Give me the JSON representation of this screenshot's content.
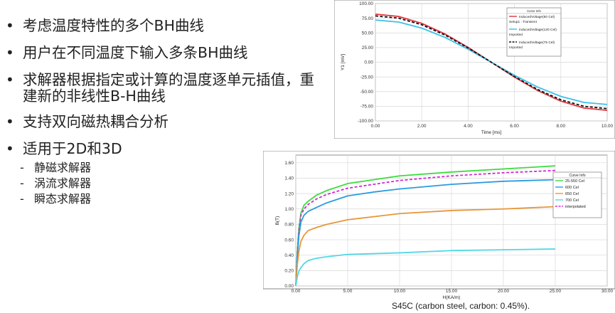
{
  "bullets": [
    "考虑温度特性的多个BH曲线",
    "用户在不同温度下输入多条BH曲线",
    "求解器根据指定或计算的温度逐单元插值，重建新的非线性B-H曲线",
    "支持双向磁热耦合分析",
    "适用于2D和3D"
  ],
  "sub_bullets": [
    "静磁求解器",
    "涡流求解器",
    "瞬态求解器"
  ],
  "chart_data": [
    {
      "type": "line",
      "xlabel": "Time [ms]",
      "ylabel": "Y1 [mV]",
      "xlim": [
        0,
        10
      ],
      "ylim": [
        -100,
        100
      ],
      "xticks": [
        "0.00",
        "2.00",
        "4.00",
        "6.00",
        "8.00",
        "10.00"
      ],
      "yticks": [
        "100.00",
        "75.00",
        "50.00",
        "25.00",
        "0.00",
        "-25.00",
        "-50.00",
        "-75.00",
        "-100.00"
      ],
      "grid": true,
      "legend": {
        "position": "top-right",
        "title": "Curve Info",
        "entries": [
          {
            "name": "InducedVoltage(50 Cel)",
            "sub": "Setup1 : Transient",
            "color": "#e0343c",
            "dash": false
          },
          {
            "name": "InducedVoltage(120 Cel)",
            "sub": "Imported",
            "color": "#3cc0e8",
            "dash": false
          },
          {
            "name": "InducedVoltage(75 Cel)",
            "sub": "Imported",
            "color": "#111111",
            "dash": true
          }
        ]
      },
      "x": [
        0,
        1,
        2,
        3,
        4,
        5,
        6,
        7,
        8,
        9,
        10
      ],
      "series": [
        {
          "name": "InducedVoltage(50 Cel)",
          "color": "#e0343c",
          "dash": false,
          "values": [
            82,
            78,
            66.3,
            48.2,
            25.3,
            0,
            -25.3,
            -48.2,
            -66.3,
            -78,
            -82
          ]
        },
        {
          "name": "InducedVoltage(120 Cel)",
          "color": "#3cc0e8",
          "dash": false,
          "values": [
            72,
            68.5,
            58.2,
            42.3,
            22.2,
            0,
            -22.2,
            -42.3,
            -58.2,
            -68.5,
            -72
          ]
        },
        {
          "name": "InducedVoltage(75 Cel)",
          "color": "#111111",
          "dash": true,
          "values": [
            79,
            75.1,
            63.9,
            46.4,
            24.4,
            0,
            -24.4,
            -46.4,
            -63.9,
            -75.1,
            -79
          ]
        }
      ]
    },
    {
      "type": "line",
      "xlabel": "H(KA/m)",
      "ylabel": "B(T)",
      "xlim": [
        0,
        30
      ],
      "ylim": [
        0,
        1.7
      ],
      "xticks": [
        "0.00",
        "5.00",
        "10.00",
        "15.00",
        "20.00",
        "25.00",
        "30.00"
      ],
      "yticks": [
        "0.00",
        "0.20",
        "0.40",
        "0.60",
        "0.80",
        "1.00",
        "1.20",
        "1.40",
        "1.60"
      ],
      "grid": true,
      "caption": "S45C (carbon steel, carbon: 0.45%).",
      "legend": {
        "position": "right",
        "title": "Curve Info",
        "entries": [
          {
            "name": "25-550 Cel",
            "color": "#3ddc3d",
            "dash": false
          },
          {
            "name": "600 Cel",
            "color": "#2b9be0",
            "dash": false
          },
          {
            "name": "650 Cel",
            "color": "#e8963a",
            "dash": false
          },
          {
            "name": "700 Cel",
            "color": "#4fd8e8",
            "dash": false
          },
          {
            "name": "interpolated",
            "color": "#d02bd0",
            "dash": true
          }
        ]
      },
      "series": [
        {
          "name": "25-550 Cel",
          "color": "#3ddc3d",
          "dash": false,
          "points": [
            [
              0,
              0
            ],
            [
              0.15,
              0.45
            ],
            [
              0.3,
              0.75
            ],
            [
              0.5,
              0.95
            ],
            [
              0.8,
              1.05
            ],
            [
              1.2,
              1.1
            ],
            [
              2,
              1.18
            ],
            [
              3,
              1.24
            ],
            [
              5,
              1.33
            ],
            [
              7.5,
              1.38
            ],
            [
              10,
              1.43
            ],
            [
              15,
              1.48
            ],
            [
              20,
              1.52
            ],
            [
              25,
              1.56
            ]
          ]
        },
        {
          "name": "interpolated",
          "color": "#d02bd0",
          "dash": true,
          "points": [
            [
              0,
              0
            ],
            [
              0.15,
              0.42
            ],
            [
              0.3,
              0.72
            ],
            [
              0.5,
              0.92
            ],
            [
              0.8,
              1.0
            ],
            [
              1.2,
              1.06
            ],
            [
              2,
              1.13
            ],
            [
              3,
              1.19
            ],
            [
              5,
              1.27
            ],
            [
              7.5,
              1.32
            ],
            [
              10,
              1.37
            ],
            [
              15,
              1.43
            ],
            [
              20,
              1.47
            ],
            [
              25,
              1.5
            ]
          ]
        },
        {
          "name": "600 Cel",
          "color": "#2b9be0",
          "dash": false,
          "points": [
            [
              0,
              0
            ],
            [
              0.15,
              0.38
            ],
            [
              0.3,
              0.65
            ],
            [
              0.5,
              0.83
            ],
            [
              0.8,
              0.92
            ],
            [
              1.2,
              0.97
            ],
            [
              2,
              1.02
            ],
            [
              3,
              1.08
            ],
            [
              5,
              1.17
            ],
            [
              7.5,
              1.22
            ],
            [
              10,
              1.26
            ],
            [
              15,
              1.32
            ],
            [
              20,
              1.36
            ],
            [
              25,
              1.38
            ]
          ]
        },
        {
          "name": "650 Cel",
          "color": "#e8963a",
          "dash": false,
          "points": [
            [
              0,
              0
            ],
            [
              0.15,
              0.28
            ],
            [
              0.3,
              0.45
            ],
            [
              0.5,
              0.58
            ],
            [
              0.8,
              0.66
            ],
            [
              1.2,
              0.72
            ],
            [
              2,
              0.76
            ],
            [
              3,
              0.8
            ],
            [
              5,
              0.86
            ],
            [
              7.5,
              0.9
            ],
            [
              10,
              0.94
            ],
            [
              15,
              0.98
            ],
            [
              20,
              1.0
            ],
            [
              25,
              1.03
            ]
          ]
        },
        {
          "name": "700 Cel",
          "color": "#4fd8e8",
          "dash": false,
          "points": [
            [
              0,
              0
            ],
            [
              0.15,
              0.12
            ],
            [
              0.3,
              0.19
            ],
            [
              0.5,
              0.24
            ],
            [
              0.8,
              0.29
            ],
            [
              1.2,
              0.33
            ],
            [
              2,
              0.36
            ],
            [
              3,
              0.38
            ],
            [
              5,
              0.41
            ],
            [
              7.5,
              0.42
            ],
            [
              10,
              0.43
            ],
            [
              15,
              0.46
            ],
            [
              20,
              0.47
            ],
            [
              25,
              0.48
            ]
          ]
        }
      ]
    }
  ]
}
